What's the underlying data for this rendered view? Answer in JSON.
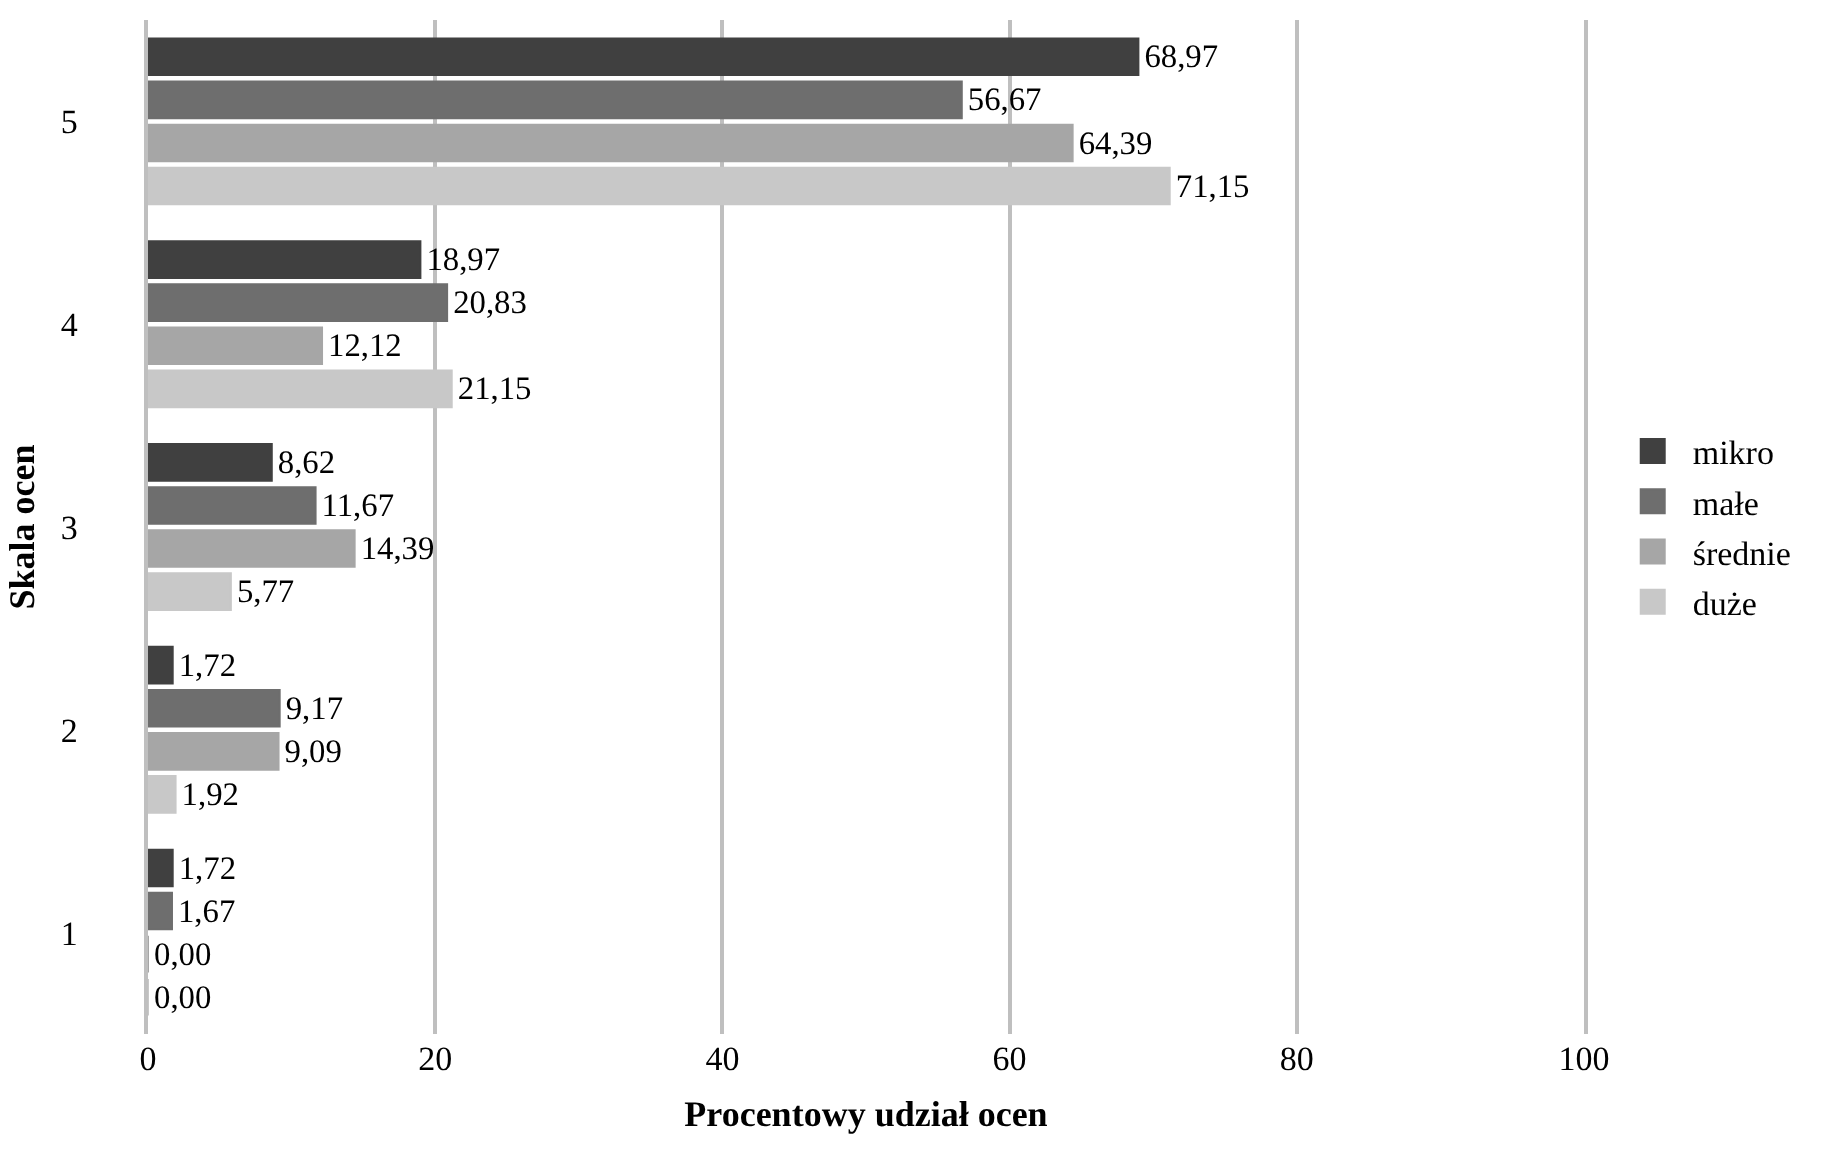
{
  "chart_data": {
    "type": "bar",
    "orientation": "horizontal",
    "xlabel": "Procentowy udział ocen",
    "ylabel": "Skala ocen",
    "categories": [
      "5",
      "4",
      "3",
      "2",
      "1"
    ],
    "series": [
      {
        "name": "mikro",
        "color": "#404040",
        "values": [
          68.97,
          18.97,
          8.62,
          1.72,
          1.72
        ],
        "value_labels": [
          "68,97",
          "18,97",
          "8,62",
          "1,72",
          "1,72"
        ]
      },
      {
        "name": "małe",
        "color": "#6e6e6e",
        "values": [
          56.67,
          20.83,
          11.67,
          9.17,
          1.67
        ],
        "value_labels": [
          "56,67",
          "20,83",
          "11,67",
          "9,17",
          "1,67"
        ]
      },
      {
        "name": "średnie",
        "color": "#a6a6a6",
        "values": [
          64.39,
          12.12,
          14.39,
          9.09,
          0.0
        ],
        "value_labels": [
          "64,39",
          "12,12",
          "14,39",
          "9,09",
          "0,00"
        ]
      },
      {
        "name": "duże",
        "color": "#c8c8c8",
        "values": [
          71.15,
          21.15,
          5.77,
          1.92,
          0.0
        ],
        "value_labels": [
          "71,15",
          "21,15",
          "5,77",
          "1,92",
          "0,00"
        ]
      }
    ],
    "xlim": [
      0,
      100
    ],
    "xticks": [
      0,
      20,
      40,
      60,
      80,
      100
    ],
    "grid": "x",
    "legend": "right"
  }
}
